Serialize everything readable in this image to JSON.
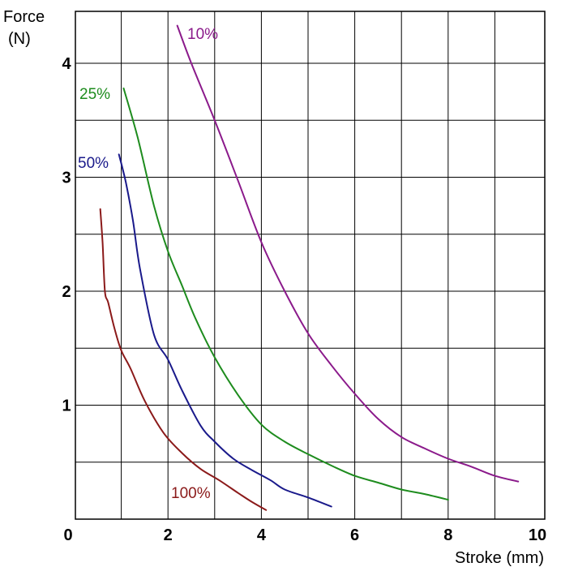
{
  "chart_data": {
    "type": "line",
    "title": "",
    "ylabel_line1": "Force",
    "ylabel_line2": "(N)",
    "xlabel": "Stroke (mm)",
    "xlim": [
      0,
      10
    ],
    "ylim": [
      0,
      4.4
    ],
    "x_ticks": [
      {
        "value": 0,
        "label": "0"
      },
      {
        "value": 2,
        "label": "2"
      },
      {
        "value": 4,
        "label": "4"
      },
      {
        "value": 6,
        "label": "6"
      },
      {
        "value": 8,
        "label": "8"
      },
      {
        "value": 10,
        "label": "10"
      }
    ],
    "y_ticks": [
      {
        "value": 1,
        "label": "1"
      },
      {
        "value": 2,
        "label": "2"
      },
      {
        "value": 3,
        "label": "3"
      },
      {
        "value": 4,
        "label": "4"
      }
    ],
    "grid": true,
    "series": [
      {
        "name": "10%",
        "color": "#8b1a8b",
        "x": [
          2.2,
          2.5,
          3.0,
          3.5,
          4.0,
          4.5,
          5.0,
          5.5,
          6.0,
          6.5,
          7.0,
          7.5,
          8.0,
          8.5,
          9.0,
          9.5
        ],
        "y": [
          4.33,
          4.0,
          3.5,
          2.97,
          2.43,
          2.0,
          1.63,
          1.35,
          1.1,
          0.88,
          0.72,
          0.62,
          0.53,
          0.46,
          0.38,
          0.33
        ]
      },
      {
        "name": "25%",
        "color": "#1e8c1e",
        "x": [
          1.05,
          1.35,
          1.7,
          2.0,
          2.3,
          2.6,
          3.0,
          3.5,
          4.0,
          4.5,
          5.0,
          5.5,
          6.0,
          6.5,
          7.0,
          7.5,
          8.0
        ],
        "y": [
          3.78,
          3.35,
          2.75,
          2.35,
          2.05,
          1.75,
          1.42,
          1.09,
          0.83,
          0.68,
          0.57,
          0.47,
          0.38,
          0.32,
          0.26,
          0.22,
          0.17
        ]
      },
      {
        "name": "50%",
        "color": "#1a1a8b",
        "x": [
          0.95,
          1.1,
          1.25,
          1.4,
          1.7,
          2.0,
          2.3,
          2.7,
          3.0,
          3.4,
          3.8,
          4.2,
          4.5,
          5.0,
          5.5
        ],
        "y": [
          3.2,
          2.95,
          2.62,
          2.2,
          1.62,
          1.4,
          1.13,
          0.82,
          0.68,
          0.53,
          0.43,
          0.34,
          0.26,
          0.19,
          0.11
        ]
      },
      {
        "name": "100%",
        "color": "#8b1a1a",
        "x": [
          0.55,
          0.6,
          0.65,
          0.72,
          0.85,
          1.0,
          1.2,
          1.5,
          1.9,
          2.3,
          2.7,
          3.1,
          3.5,
          3.8,
          4.1
        ],
        "y": [
          2.72,
          2.42,
          2.0,
          1.9,
          1.68,
          1.48,
          1.32,
          1.04,
          0.76,
          0.58,
          0.44,
          0.34,
          0.23,
          0.15,
          0.08
        ]
      }
    ]
  }
}
